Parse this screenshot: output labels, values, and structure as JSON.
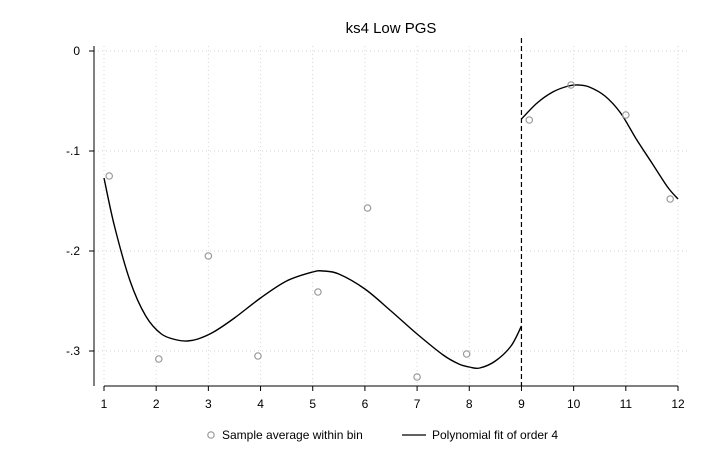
{
  "chart_data": {
    "type": "scatter",
    "title": "ks4 Low PGS",
    "xlabel": "",
    "ylabel": "",
    "xlim": [
      1,
      12
    ],
    "ylim": [
      -0.335,
      0.005
    ],
    "x_ticks": [
      1,
      2,
      3,
      4,
      5,
      6,
      7,
      8,
      9,
      10,
      11,
      12
    ],
    "x_tick_labels": [
      "1",
      "2",
      "3",
      "4",
      "5",
      "6",
      "7",
      "8",
      "9",
      "10",
      "11",
      "12"
    ],
    "y_ticks": [
      0,
      -0.1,
      -0.2,
      -0.3
    ],
    "y_tick_labels": [
      "0",
      "-.1",
      "-.2",
      "-.3"
    ],
    "grid": true,
    "cutoff_x": 9,
    "legend_position": "bottom",
    "series": [
      {
        "name": "Sample average within bin",
        "kind": "scatter",
        "color": "#999999",
        "x": [
          1.1,
          2.05,
          3.0,
          3.95,
          5.1,
          6.05,
          7.0,
          7.95,
          9.15,
          9.95,
          11.0,
          11.85
        ],
        "y": [
          -0.125,
          -0.308,
          -0.205,
          -0.305,
          -0.241,
          -0.157,
          -0.326,
          -0.303,
          -0.069,
          -0.034,
          -0.064,
          -0.148
        ]
      },
      {
        "name": "Polynomial fit of order 4",
        "kind": "line",
        "color": "#000000",
        "segments": [
          {
            "x": [
              1.0,
              1.2,
              1.5,
              1.8,
              2.1,
              2.4,
              2.6,
              2.8,
              3.1,
              3.5,
              4.0,
              4.5,
              5.0,
              5.2,
              5.5,
              6.0,
              6.5,
              7.0,
              7.5,
              7.8,
              8.0,
              8.2,
              8.5,
              8.8,
              9.0
            ],
            "y": [
              -0.127,
              -0.175,
              -0.23,
              -0.265,
              -0.283,
              -0.289,
              -0.29,
              -0.288,
              -0.281,
              -0.267,
              -0.247,
              -0.23,
              -0.221,
              -0.22,
              -0.223,
              -0.238,
              -0.26,
              -0.283,
              -0.304,
              -0.313,
              -0.316,
              -0.317,
              -0.31,
              -0.295,
              -0.275
            ]
          },
          {
            "x": [
              9.0,
              9.3,
              9.6,
              9.9,
              10.1,
              10.3,
              10.6,
              10.9,
              11.2,
              11.5,
              11.8,
              12.0
            ],
            "y": [
              -0.068,
              -0.052,
              -0.041,
              -0.035,
              -0.034,
              -0.036,
              -0.045,
              -0.062,
              -0.088,
              -0.112,
              -0.136,
              -0.148
            ]
          }
        ]
      }
    ]
  }
}
